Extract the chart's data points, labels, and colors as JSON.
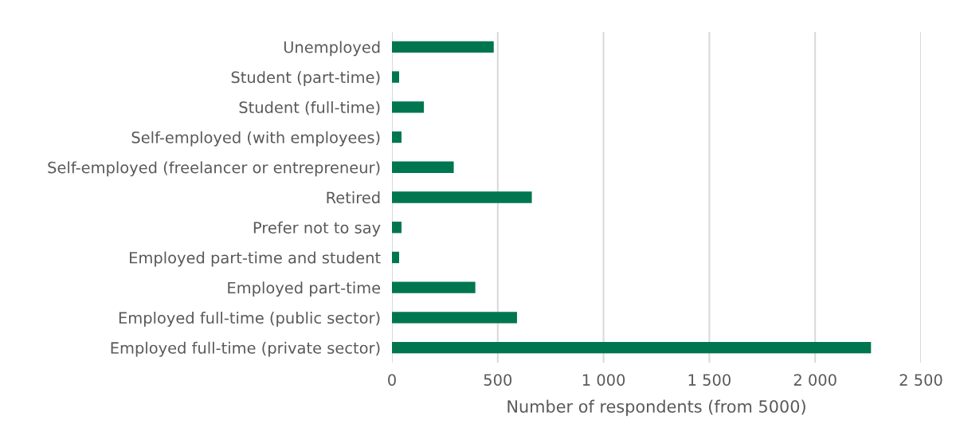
{
  "chart_data": {
    "type": "bar",
    "orientation": "horizontal",
    "xlabel": "Number of respondents (from 5000)",
    "categories": [
      "Unemployed",
      "Student (part-time)",
      "Student (full-time)",
      "Self-employed (with employees)",
      "Self-employed (freelancer or entrepreneur)",
      "Retired",
      "Prefer not to say",
      "Employed part-time and student",
      "Employed part-time",
      "Employed full-time (public sector)",
      "Employed full-time (private sector)"
    ],
    "values": [
      481,
      34,
      151,
      45,
      292,
      661,
      45,
      34,
      394,
      591,
      2264
    ],
    "color": "#007650",
    "xlim": [
      0,
      2500
    ],
    "xticks": [
      0,
      500,
      {
        "value": 1000,
        "label": "1 000"
      },
      {
        "value": 1500,
        "label": "1 500"
      },
      {
        "value": 2000,
        "label": "2 000"
      },
      {
        "value": 2500,
        "label": "2 500"
      }
    ],
    "grid": "x"
  }
}
